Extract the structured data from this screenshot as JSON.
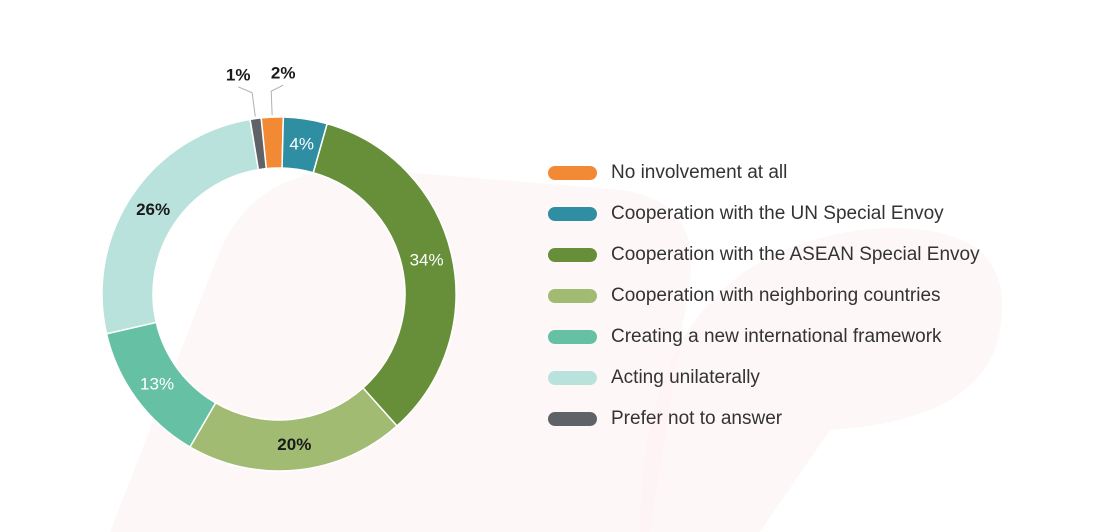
{
  "chart_data": {
    "type": "pie",
    "variant": "donut",
    "categories": [
      "No involvement at all",
      "Cooperation with the UN Special Envoy",
      "Cooperation with the ASEAN Special Envoy",
      "Cooperation with neighboring countries",
      "Creating a new international framework",
      "Acting unilaterally",
      "Prefer not to answer"
    ],
    "values": [
      2,
      4,
      34,
      20,
      13,
      26,
      1
    ],
    "data_labels": [
      "2%",
      "4%",
      "34%",
      "20%",
      "13%",
      "26%",
      "1%"
    ],
    "colors": [
      "#f28a35",
      "#2f8ea1",
      "#678f3a",
      "#a2bb73",
      "#66c0a4",
      "#b9e2dc",
      "#5f6367"
    ],
    "label_colors": [
      "#1a1a1a",
      "#ffffff",
      "#ffffff",
      "#1a1a1a",
      "#ffffff",
      "#1a1a1a",
      "#1a1a1a"
    ],
    "label_bold": [
      true,
      false,
      false,
      true,
      false,
      true,
      true
    ],
    "label_outside": [
      true,
      false,
      false,
      false,
      false,
      false,
      true
    ],
    "legend_position": "right",
    "title": "",
    "xlabel": "",
    "ylabel": ""
  }
}
